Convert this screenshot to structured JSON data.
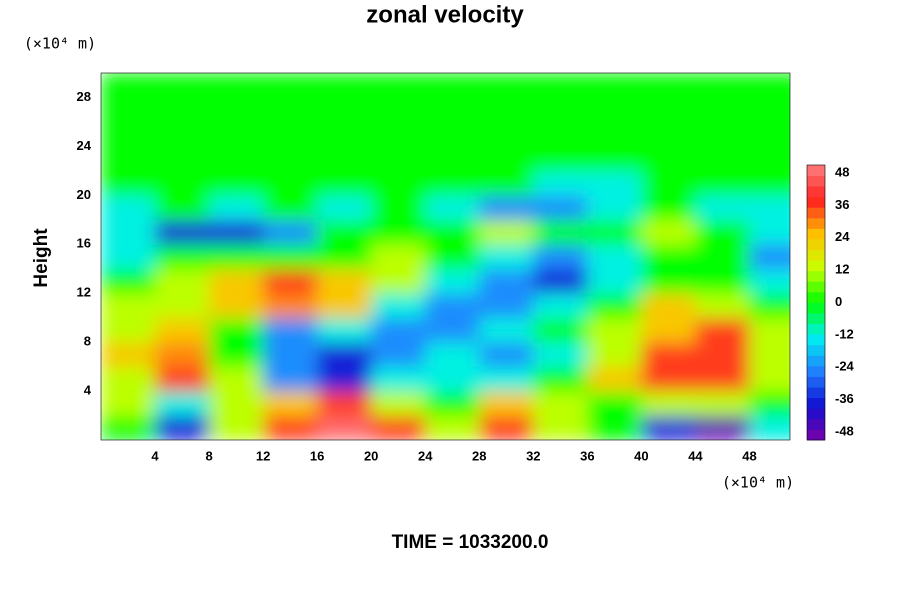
{
  "chart_data": {
    "type": "heatmap",
    "title": "zonal velocity",
    "ylabel": "Height",
    "y_unit": "(×10⁴ m)",
    "x_unit": "(×10⁴ m)",
    "footer": "TIME = 1033200.0",
    "xlim": [
      0,
      51
    ],
    "ylim": [
      0,
      30
    ],
    "xticks": [
      4,
      8,
      12,
      16,
      20,
      24,
      28,
      32,
      36,
      40,
      44,
      48
    ],
    "yticks": [
      4,
      8,
      12,
      16,
      20,
      24,
      28
    ],
    "clim": [
      -51,
      51
    ],
    "cticks": [
      -48,
      -36,
      -24,
      -12,
      0,
      12,
      24,
      36,
      48
    ],
    "colorscale": [
      "#7a00a8",
      "#1010d0",
      "#2080ff",
      "#00f0f0",
      "#00ff00",
      "#c8ff00",
      "#ffc000",
      "#ff2020",
      "#ff8080"
    ],
    "x": [
      2,
      6,
      10,
      14,
      18,
      22,
      26,
      30,
      34,
      38,
      42,
      46,
      50
    ],
    "y": [
      1,
      3,
      5,
      7,
      9,
      11,
      13,
      15,
      17,
      19,
      21,
      23,
      25,
      27,
      29
    ],
    "z": [
      [
        0,
        -36,
        12,
        36,
        48,
        36,
        12,
        36,
        12,
        0,
        -36,
        -48,
        -12
      ],
      [
        12,
        -12,
        12,
        24,
        36,
        12,
        0,
        24,
        12,
        0,
        12,
        12,
        0
      ],
      [
        12,
        36,
        12,
        -24,
        -36,
        -12,
        -12,
        -12,
        0,
        24,
        36,
        36,
        12
      ],
      [
        24,
        30,
        0,
        -24,
        -36,
        -24,
        -12,
        -24,
        -12,
        12,
        36,
        36,
        12
      ],
      [
        12,
        24,
        0,
        -24,
        -12,
        -24,
        -24,
        -12,
        0,
        12,
        24,
        36,
        12
      ],
      [
        12,
        12,
        24,
        30,
        24,
        -12,
        -24,
        -24,
        -12,
        0,
        24,
        12,
        0
      ],
      [
        0,
        12,
        24,
        36,
        24,
        12,
        -12,
        -24,
        -36,
        -12,
        0,
        0,
        -12
      ],
      [
        -12,
        0,
        0,
        0,
        0,
        12,
        0,
        -12,
        -24,
        -12,
        0,
        0,
        -24
      ],
      [
        -12,
        -36,
        -36,
        -24,
        0,
        0,
        0,
        12,
        0,
        0,
        12,
        0,
        -12
      ],
      [
        -12,
        0,
        -12,
        0,
        -12,
        0,
        -12,
        -24,
        -24,
        -12,
        0,
        -12,
        -12
      ],
      [
        0,
        0,
        0,
        0,
        0,
        0,
        0,
        0,
        -12,
        -12,
        0,
        0,
        0
      ],
      [
        0,
        0,
        0,
        0,
        0,
        0,
        0,
        0,
        0,
        0,
        0,
        0,
        0
      ],
      [
        0,
        0,
        0,
        0,
        0,
        0,
        0,
        0,
        0,
        0,
        0,
        0,
        0
      ],
      [
        0,
        0,
        0,
        0,
        0,
        0,
        0,
        0,
        0,
        0,
        0,
        0,
        0
      ],
      [
        0,
        0,
        0,
        0,
        0,
        0,
        0,
        0,
        0,
        0,
        0,
        0,
        0
      ]
    ]
  }
}
